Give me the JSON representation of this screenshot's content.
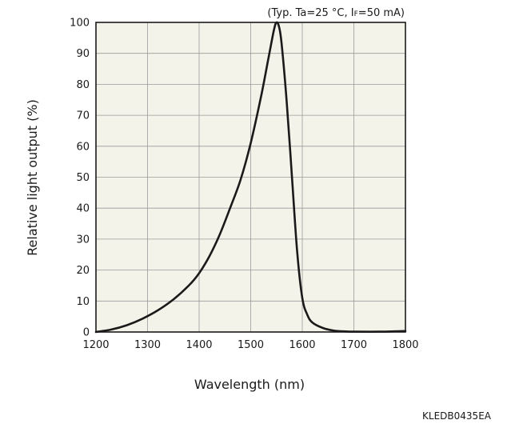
{
  "chart_data": {
    "type": "line",
    "conditions": {
      "prefix": "(Typ. Ta=25 °C, I",
      "subscript": "F",
      "suffix": "=50 mA)"
    },
    "xlabel": "Wavelength (nm)",
    "ylabel": "Relative light output (%)",
    "xlim": [
      1200,
      1800
    ],
    "ylim": [
      0,
      100
    ],
    "x_ticks": [
      1200,
      1300,
      1400,
      1500,
      1600,
      1700,
      1800
    ],
    "y_ticks": [
      0,
      10,
      20,
      30,
      40,
      50,
      60,
      70,
      80,
      90,
      100
    ],
    "grid": true,
    "plot_background": "#f4f3ea",
    "line_color": "#1a1a1a",
    "series": [
      {
        "x": [
          1200,
          1230,
          1260,
          1290,
          1320,
          1350,
          1380,
          1400,
          1420,
          1440,
          1460,
          1480,
          1500,
          1520,
          1535,
          1545,
          1550,
          1555,
          1560,
          1570,
          1580,
          1590,
          1600,
          1610,
          1620,
          1640,
          1660,
          1680,
          1700,
          1750,
          1800
        ],
        "values": [
          0,
          0.8,
          2.2,
          4.3,
          7.0,
          10.5,
          15.0,
          19.0,
          24.5,
          31.5,
          40.0,
          49.0,
          61.0,
          76.0,
          89.0,
          97.5,
          100.0,
          98.5,
          93.0,
          74.0,
          50.0,
          26.0,
          11.0,
          5.5,
          3.0,
          1.3,
          0.5,
          0.2,
          0.1,
          0.1,
          0.3
        ]
      }
    ]
  },
  "figure_code": "KLEDB0435EA"
}
